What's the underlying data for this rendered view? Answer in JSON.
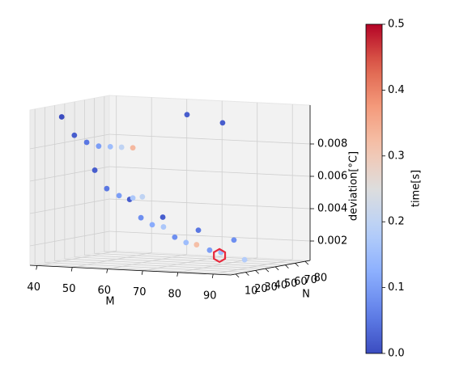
{
  "chart_data": {
    "type": "scatter3d",
    "xlabel": "M",
    "ylabel": "N",
    "zlabel": "deviation[°C]",
    "colorbar_label": "time[s]",
    "colormap": "coolwarm",
    "xlim": [
      38,
      95
    ],
    "ylim": [
      5,
      85
    ],
    "zlim": [
      0.0008,
      0.0104
    ],
    "clim": [
      0,
      0.5
    ],
    "xticks": [
      40,
      50,
      60,
      70,
      80,
      90
    ],
    "yticks": [
      10,
      20,
      30,
      40,
      50,
      60,
      70,
      80
    ],
    "zticks": [
      0.002,
      0.004,
      0.006,
      0.008
    ],
    "cticks": [
      {
        "value": 0,
        "label": "0.0"
      },
      0.1,
      0.2,
      0.3,
      0.4,
      0.5
    ],
    "grid": true,
    "M": [
      45.6,
      49.2,
      52.7,
      56.1,
      59.4,
      62.6,
      65.8,
      55.0,
      58.4,
      61.9,
      64.9,
      65.8,
      68.5,
      68.1,
      71.3,
      74.5,
      74.3,
      77.7,
      80.9,
      83.9,
      84.4,
      87.6,
      90.8,
      94.5,
      93.3,
      67.1,
      77.2
    ],
    "N": [
      10,
      10,
      10,
      10,
      10,
      10,
      10,
      10,
      10,
      10,
      10,
      10,
      10,
      10,
      10,
      10,
      10,
      10,
      10,
      10,
      10,
      10,
      10,
      10,
      25,
      60,
      60
    ],
    "deviation": [
      0.01,
      0.0089,
      0.0085,
      0.0083,
      0.0083,
      0.0083,
      0.0083,
      0.0068,
      0.0057,
      0.0053,
      0.0051,
      0.0052,
      0.0053,
      0.004,
      0.0036,
      0.0035,
      0.0041,
      0.0029,
      0.0026,
      0.0025,
      0.0034,
      0.0022,
      0.0021,
      0.0029,
      0.0015,
      0.0098,
      0.0094
    ],
    "time": [
      0.0,
      0.02,
      0.05,
      0.1,
      0.15,
      0.2,
      0.33,
      0.02,
      0.05,
      0.1,
      0.02,
      0.17,
      0.2,
      0.08,
      0.12,
      0.17,
      0.02,
      0.08,
      0.15,
      0.32,
      0.05,
      0.1,
      0.15,
      0.08,
      0.18,
      0.02,
      0.02
    ],
    "highlight": {
      "M": 90.4,
      "N": 10,
      "deviation": 0.0019,
      "color": "#e8283c"
    }
  }
}
